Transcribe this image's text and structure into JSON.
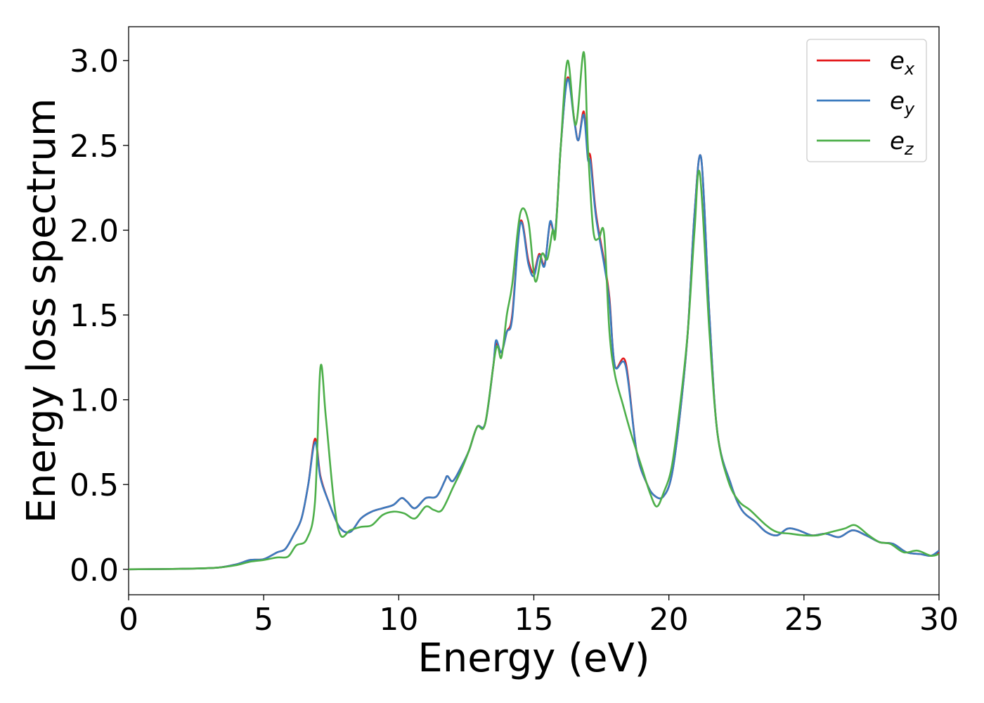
{
  "chart_data": {
    "type": "line",
    "title": "",
    "xlabel": "Energy (eV)",
    "ylabel": "Energy loss spectrum",
    "xlim": [
      0,
      30
    ],
    "ylim": [
      -0.15,
      3.2
    ],
    "xticks": [
      0,
      5,
      10,
      15,
      20,
      25,
      30
    ],
    "yticks": [
      0.0,
      0.5,
      1.0,
      1.5,
      2.0,
      2.5,
      3.0
    ],
    "ytick_labels": [
      "0.0",
      "0.5",
      "1.0",
      "1.5",
      "2.0",
      "2.5",
      "3.0"
    ],
    "grid": false,
    "legend_position": "top-right",
    "series": [
      {
        "name": "e_x",
        "label_base": "e",
        "label_sub": "x",
        "color": "#e41a1c",
        "points": [
          [
            0,
            0
          ],
          [
            2,
            0.003
          ],
          [
            3.3,
            0.01
          ],
          [
            4,
            0.03
          ],
          [
            4.5,
            0.055
          ],
          [
            5,
            0.06
          ],
          [
            5.5,
            0.1
          ],
          [
            5.8,
            0.12
          ],
          [
            6.1,
            0.2
          ],
          [
            6.4,
            0.3
          ],
          [
            6.65,
            0.5
          ],
          [
            6.9,
            0.77
          ],
          [
            7.1,
            0.55
          ],
          [
            7.4,
            0.4
          ],
          [
            7.8,
            0.25
          ],
          [
            8.2,
            0.22
          ],
          [
            8.6,
            0.3
          ],
          [
            9,
            0.34
          ],
          [
            9.4,
            0.36
          ],
          [
            9.8,
            0.38
          ],
          [
            10.1,
            0.42
          ],
          [
            10.3,
            0.4
          ],
          [
            10.6,
            0.36
          ],
          [
            11,
            0.42
          ],
          [
            11.4,
            0.43
          ],
          [
            11.7,
            0.52
          ],
          [
            11.8,
            0.55
          ],
          [
            12,
            0.52
          ],
          [
            12.3,
            0.6
          ],
          [
            12.6,
            0.7
          ],
          [
            12.9,
            0.84
          ],
          [
            13.2,
            0.86
          ],
          [
            13.5,
            1.2
          ],
          [
            13.6,
            1.33
          ],
          [
            13.8,
            1.28
          ],
          [
            14,
            1.4
          ],
          [
            14.2,
            1.5
          ],
          [
            14.5,
            2.05
          ],
          [
            14.8,
            1.82
          ],
          [
            15,
            1.75
          ],
          [
            15.2,
            1.86
          ],
          [
            15.4,
            1.8
          ],
          [
            15.6,
            2.04
          ],
          [
            15.8,
            2.0
          ],
          [
            16,
            2.5
          ],
          [
            16.25,
            2.9
          ],
          [
            16.5,
            2.65
          ],
          [
            16.65,
            2.53
          ],
          [
            16.85,
            2.7
          ],
          [
            17,
            2.45
          ],
          [
            17.1,
            2.43
          ],
          [
            17.3,
            2.1
          ],
          [
            17.6,
            1.82
          ],
          [
            17.8,
            1.6
          ],
          [
            18,
            1.2
          ],
          [
            18.4,
            1.22
          ],
          [
            18.8,
            0.7
          ],
          [
            19.2,
            0.5
          ],
          [
            19.5,
            0.43
          ],
          [
            19.8,
            0.43
          ],
          [
            20.1,
            0.55
          ],
          [
            20.4,
            0.9
          ],
          [
            20.7,
            1.4
          ],
          [
            20.95,
            2.1
          ],
          [
            21.2,
            2.42
          ],
          [
            21.5,
            1.5
          ],
          [
            21.8,
            0.8
          ],
          [
            22.3,
            0.5
          ],
          [
            22.7,
            0.35
          ],
          [
            23.2,
            0.28
          ],
          [
            23.6,
            0.22
          ],
          [
            24,
            0.2
          ],
          [
            24.4,
            0.24
          ],
          [
            24.8,
            0.23
          ],
          [
            25.3,
            0.2
          ],
          [
            25.8,
            0.21
          ],
          [
            26.3,
            0.19
          ],
          [
            26.8,
            0.23
          ],
          [
            27.3,
            0.2
          ],
          [
            27.8,
            0.16
          ],
          [
            28.3,
            0.15
          ],
          [
            28.8,
            0.1
          ],
          [
            29.3,
            0.09
          ],
          [
            29.7,
            0.08
          ],
          [
            30,
            0.1
          ]
        ]
      },
      {
        "name": "e_y",
        "label_base": "e",
        "label_sub": "y",
        "color": "#3b7bbf",
        "points": [
          [
            0,
            0
          ],
          [
            2,
            0.003
          ],
          [
            3.3,
            0.01
          ],
          [
            4,
            0.03
          ],
          [
            4.5,
            0.055
          ],
          [
            5,
            0.06
          ],
          [
            5.5,
            0.1
          ],
          [
            5.8,
            0.12
          ],
          [
            6.1,
            0.2
          ],
          [
            6.4,
            0.3
          ],
          [
            6.65,
            0.5
          ],
          [
            6.9,
            0.75
          ],
          [
            7.1,
            0.54
          ],
          [
            7.4,
            0.4
          ],
          [
            7.8,
            0.25
          ],
          [
            8.2,
            0.22
          ],
          [
            8.6,
            0.3
          ],
          [
            9,
            0.34
          ],
          [
            9.4,
            0.36
          ],
          [
            9.8,
            0.38
          ],
          [
            10.1,
            0.42
          ],
          [
            10.3,
            0.4
          ],
          [
            10.6,
            0.36
          ],
          [
            11,
            0.42
          ],
          [
            11.4,
            0.43
          ],
          [
            11.7,
            0.52
          ],
          [
            11.8,
            0.55
          ],
          [
            12,
            0.52
          ],
          [
            12.3,
            0.6
          ],
          [
            12.6,
            0.7
          ],
          [
            12.9,
            0.84
          ],
          [
            13.2,
            0.86
          ],
          [
            13.5,
            1.2
          ],
          [
            13.6,
            1.35
          ],
          [
            13.8,
            1.28
          ],
          [
            14,
            1.4
          ],
          [
            14.2,
            1.48
          ],
          [
            14.5,
            2.04
          ],
          [
            14.8,
            1.8
          ],
          [
            15,
            1.73
          ],
          [
            15.2,
            1.85
          ],
          [
            15.4,
            1.79
          ],
          [
            15.6,
            2.05
          ],
          [
            15.8,
            2.0
          ],
          [
            16,
            2.5
          ],
          [
            16.25,
            2.89
          ],
          [
            16.5,
            2.64
          ],
          [
            16.65,
            2.53
          ],
          [
            16.85,
            2.68
          ],
          [
            17,
            2.42
          ],
          [
            17.1,
            2.4
          ],
          [
            17.3,
            2.08
          ],
          [
            17.6,
            1.8
          ],
          [
            17.8,
            1.58
          ],
          [
            18,
            1.2
          ],
          [
            18.4,
            1.2
          ],
          [
            18.8,
            0.7
          ],
          [
            19.2,
            0.5
          ],
          [
            19.5,
            0.43
          ],
          [
            19.8,
            0.43
          ],
          [
            20.1,
            0.55
          ],
          [
            20.4,
            0.9
          ],
          [
            20.7,
            1.4
          ],
          [
            20.95,
            2.1
          ],
          [
            21.2,
            2.42
          ],
          [
            21.5,
            1.5
          ],
          [
            21.8,
            0.8
          ],
          [
            22.3,
            0.5
          ],
          [
            22.7,
            0.35
          ],
          [
            23.2,
            0.28
          ],
          [
            23.6,
            0.22
          ],
          [
            24,
            0.2
          ],
          [
            24.4,
            0.24
          ],
          [
            24.8,
            0.23
          ],
          [
            25.3,
            0.2
          ],
          [
            25.8,
            0.21
          ],
          [
            26.3,
            0.19
          ],
          [
            26.8,
            0.23
          ],
          [
            27.3,
            0.2
          ],
          [
            27.8,
            0.16
          ],
          [
            28.3,
            0.15
          ],
          [
            28.8,
            0.1
          ],
          [
            29.3,
            0.09
          ],
          [
            29.7,
            0.08
          ],
          [
            30,
            0.11
          ]
        ]
      },
      {
        "name": "e_z",
        "label_base": "e",
        "label_sub": "z",
        "color": "#4daf4a",
        "points": [
          [
            0,
            0
          ],
          [
            2,
            0.003
          ],
          [
            3.3,
            0.01
          ],
          [
            4,
            0.025
          ],
          [
            4.5,
            0.045
          ],
          [
            5,
            0.055
          ],
          [
            5.5,
            0.07
          ],
          [
            5.9,
            0.075
          ],
          [
            6.2,
            0.14
          ],
          [
            6.6,
            0.18
          ],
          [
            6.9,
            0.4
          ],
          [
            7.1,
            1.19
          ],
          [
            7.3,
            0.9
          ],
          [
            7.6,
            0.4
          ],
          [
            7.85,
            0.2
          ],
          [
            8.2,
            0.23
          ],
          [
            8.6,
            0.25
          ],
          [
            9,
            0.26
          ],
          [
            9.4,
            0.32
          ],
          [
            9.8,
            0.34
          ],
          [
            10.2,
            0.33
          ],
          [
            10.6,
            0.3
          ],
          [
            11,
            0.37
          ],
          [
            11.3,
            0.35
          ],
          [
            11.6,
            0.35
          ],
          [
            12,
            0.48
          ],
          [
            12.3,
            0.58
          ],
          [
            12.6,
            0.7
          ],
          [
            12.9,
            0.84
          ],
          [
            13.2,
            0.86
          ],
          [
            13.6,
            1.3
          ],
          [
            13.8,
            1.25
          ],
          [
            14,
            1.5
          ],
          [
            14.2,
            1.68
          ],
          [
            14.5,
            2.1
          ],
          [
            14.8,
            2.05
          ],
          [
            15.05,
            1.7
          ],
          [
            15.3,
            1.86
          ],
          [
            15.5,
            1.83
          ],
          [
            15.7,
            2.0
          ],
          [
            15.8,
            1.97
          ],
          [
            16,
            2.5
          ],
          [
            16.25,
            3.0
          ],
          [
            16.55,
            2.62
          ],
          [
            16.85,
            3.05
          ],
          [
            17,
            2.5
          ],
          [
            17.2,
            2.0
          ],
          [
            17.4,
            1.95
          ],
          [
            17.6,
            1.98
          ],
          [
            17.8,
            1.4
          ],
          [
            18,
            1.15
          ],
          [
            18.3,
            0.97
          ],
          [
            18.6,
            0.8
          ],
          [
            19.0,
            0.6
          ],
          [
            19.3,
            0.45
          ],
          [
            19.55,
            0.37
          ],
          [
            19.8,
            0.45
          ],
          [
            20.1,
            0.6
          ],
          [
            20.4,
            0.95
          ],
          [
            20.7,
            1.4
          ],
          [
            20.95,
            2.0
          ],
          [
            21.15,
            2.33
          ],
          [
            21.5,
            1.4
          ],
          [
            21.8,
            0.8
          ],
          [
            22.2,
            0.52
          ],
          [
            22.6,
            0.4
          ],
          [
            23,
            0.35
          ],
          [
            23.6,
            0.26
          ],
          [
            24,
            0.22
          ],
          [
            24.5,
            0.21
          ],
          [
            25,
            0.2
          ],
          [
            25.5,
            0.2
          ],
          [
            26,
            0.22
          ],
          [
            26.5,
            0.24
          ],
          [
            26.9,
            0.26
          ],
          [
            27.4,
            0.2
          ],
          [
            27.8,
            0.16
          ],
          [
            28.2,
            0.15
          ],
          [
            28.7,
            0.1
          ],
          [
            29.2,
            0.11
          ],
          [
            29.7,
            0.08
          ],
          [
            30,
            0.09
          ]
        ]
      }
    ]
  }
}
